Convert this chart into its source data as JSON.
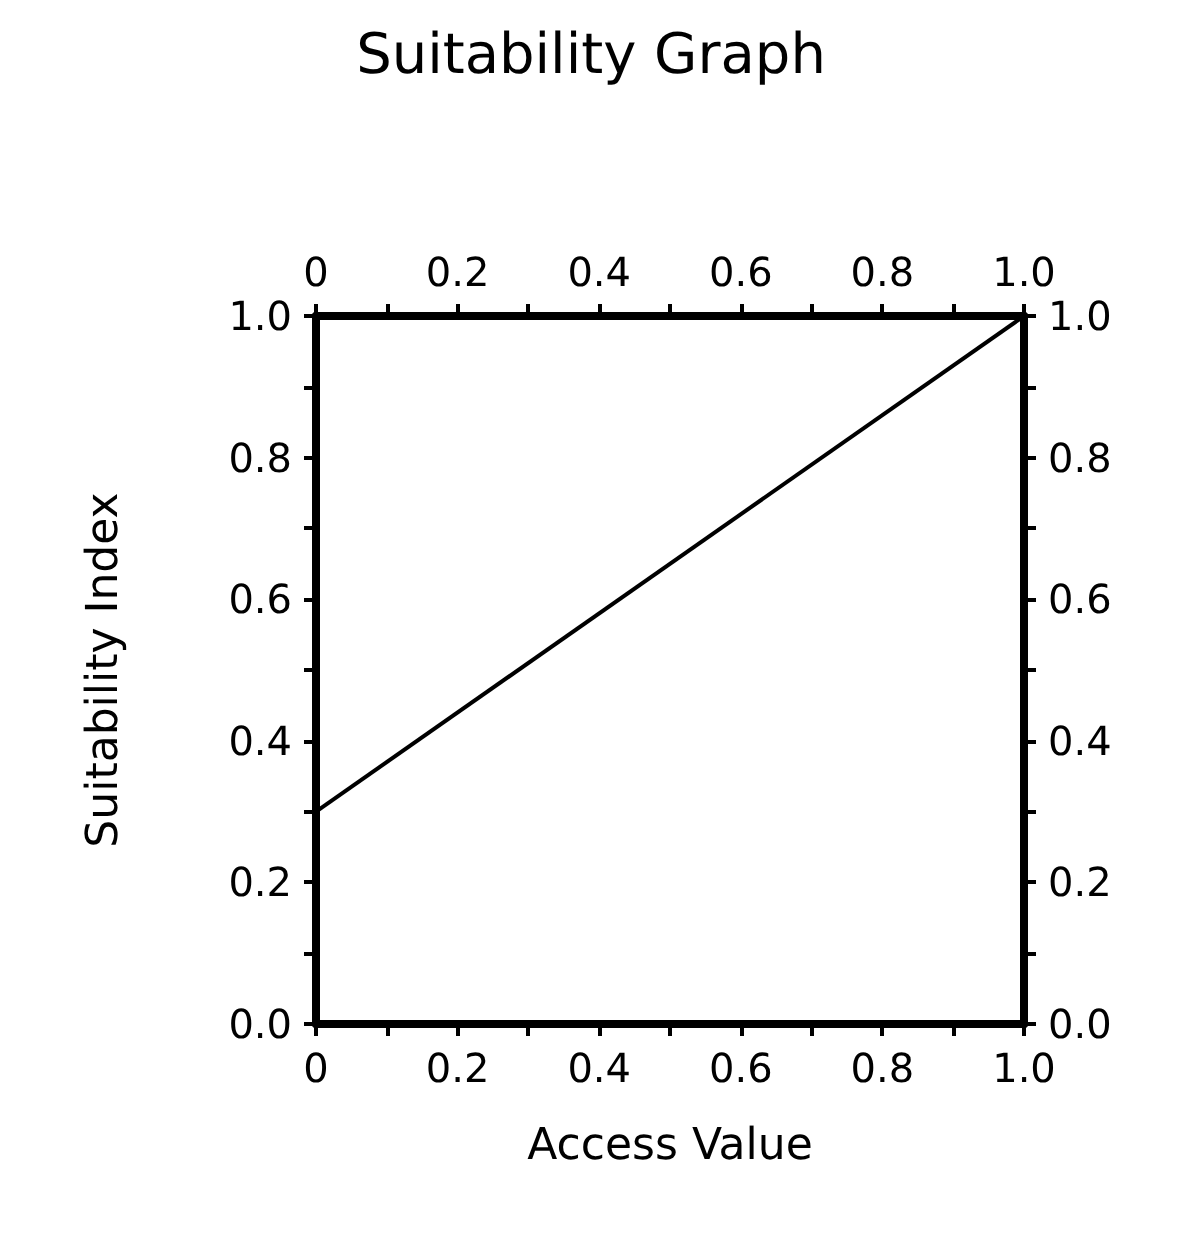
{
  "chart_data": {
    "type": "line",
    "title": "Suitability Graph",
    "xlabel": "Access Value",
    "ylabel": "Suitability Index",
    "x": [
      0,
      1
    ],
    "series": [
      {
        "color": "#000000",
        "values": [
          0.3,
          1.0
        ]
      }
    ],
    "xlim": [
      0,
      1
    ],
    "xticks": [
      0,
      {
        "value": 0.1,
        "label": null
      },
      0.2,
      {
        "value": 0.3,
        "label": null
      },
      0.4,
      {
        "value": 0.5,
        "label": null
      },
      0.6,
      {
        "value": 0.7,
        "label": null
      },
      0.8,
      {
        "value": 0.9,
        "label": null
      },
      {
        "value": 1,
        "label": "1.0"
      }
    ],
    "x2lim": [
      0,
      1
    ],
    "x2ticks": [
      0,
      {
        "value": 0.1,
        "label": null
      },
      0.2,
      {
        "value": 0.3,
        "label": null
      },
      0.4,
      {
        "value": 0.5,
        "label": null
      },
      0.6,
      {
        "value": 0.7,
        "label": null
      },
      0.8,
      {
        "value": 0.9,
        "label": null
      },
      {
        "value": 1,
        "label": "1.0"
      }
    ],
    "ylim": [
      0,
      1
    ],
    "yticks": [
      {
        "value": 0,
        "label": "0.0"
      },
      {
        "value": 0.1,
        "label": null
      },
      0.2,
      {
        "value": 0.3,
        "label": null
      },
      0.4,
      {
        "value": 0.5,
        "label": null
      },
      0.6,
      {
        "value": 0.7,
        "label": null
      },
      0.8,
      {
        "value": 0.9,
        "label": null
      },
      {
        "value": 1,
        "label": "1.0"
      }
    ],
    "y2lim": [
      0,
      1
    ],
    "y2ticks": [
      {
        "value": 0,
        "label": "0.0"
      },
      {
        "value": 0.1,
        "label": null
      },
      0.2,
      {
        "value": 0.3,
        "label": null
      },
      0.4,
      {
        "value": 0.5,
        "label": null
      },
      0.6,
      {
        "value": 0.7,
        "label": null
      },
      0.8,
      {
        "value": 0.9,
        "label": null
      },
      {
        "value": 1,
        "label": "1.0"
      }
    ],
    "grid": false,
    "marker": "none",
    "line_style": "solid"
  }
}
